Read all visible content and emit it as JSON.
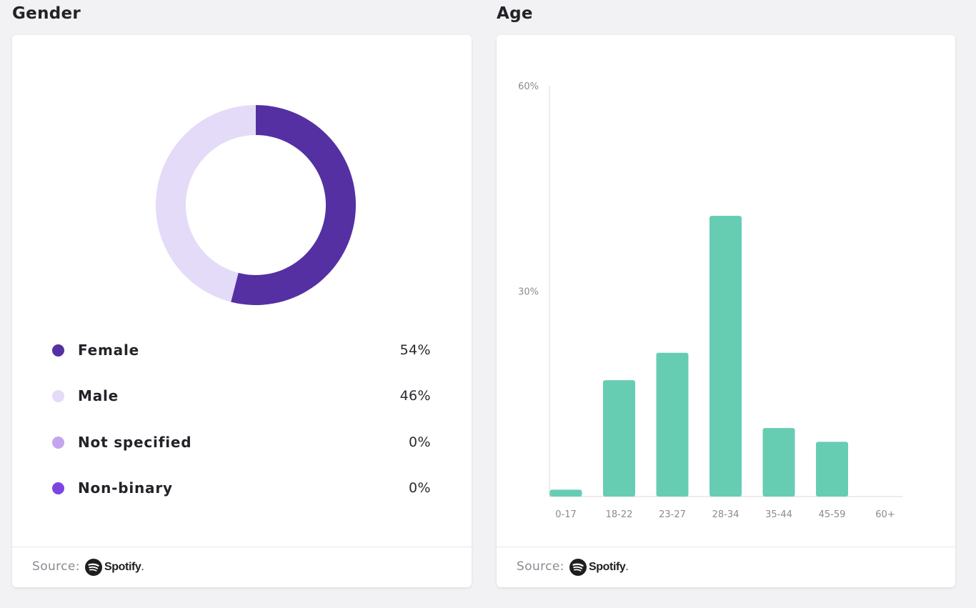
{
  "gender": {
    "title": "Gender",
    "source_label": "Source:",
    "source_brand": "Spotify"
  },
  "age": {
    "title": "Age",
    "source_label": "Source:",
    "source_brand": "Spotify"
  },
  "colors": {
    "female": "#5530a2",
    "male": "#e4dbf8",
    "not_specified": "#c3a5f0",
    "non_binary": "#7c44e2",
    "bar": "#66cdb3",
    "axis": "#d9d9dd",
    "tick_text": "#8a8a92"
  },
  "chart_data": [
    {
      "type": "pie",
      "title": "Gender",
      "donut": true,
      "categories": [
        "Female",
        "Male",
        "Not specified",
        "Non-binary"
      ],
      "values": [
        54,
        46,
        0,
        0
      ],
      "value_labels": [
        "54%",
        "46%",
        "0%",
        "0%"
      ],
      "colors": [
        "#5530a2",
        "#e4dbf8",
        "#c3a5f0",
        "#7c44e2"
      ],
      "legend_position": "bottom"
    },
    {
      "type": "bar",
      "title": "Age",
      "categories": [
        "0-17",
        "18-22",
        "23-27",
        "28-34",
        "35-44",
        "45-59",
        "60+"
      ],
      "values": [
        1,
        17,
        21,
        41,
        10,
        8,
        0
      ],
      "ylim": [
        0,
        60
      ],
      "yticks": [
        30,
        60
      ],
      "ytick_labels": [
        "30%",
        "60%"
      ],
      "grid": false
    }
  ]
}
